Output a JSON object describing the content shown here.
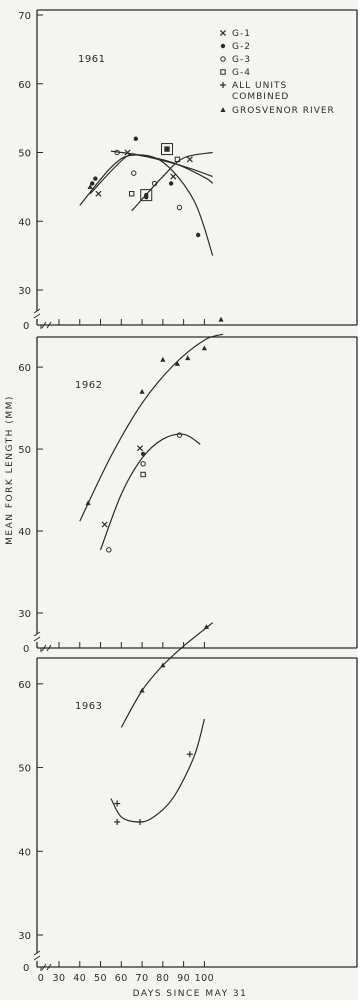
{
  "chart_data": [
    {
      "type": "scatter",
      "title": "1961",
      "xlim": [
        0,
        110
      ],
      "ylim": [
        30,
        70
      ],
      "y_ticks": [
        30,
        40,
        50,
        60,
        70
      ],
      "y_tick_labels": [
        "30",
        "40",
        "50",
        "60",
        "70"
      ],
      "ylabel": "",
      "legend_placement": "top-right",
      "legend": [
        {
          "marker": "x",
          "label": "G-1"
        },
        {
          "marker": "dot",
          "label": "G-2"
        },
        {
          "marker": "circle",
          "label": "G-3"
        },
        {
          "marker": "square",
          "label": "G-4"
        },
        {
          "marker": "plus",
          "label": "ALL UNITS"
        },
        {
          "marker": "none",
          "label": "COMBINED"
        },
        {
          "marker": "triangle",
          "label": "GROSVENOR RIVER"
        }
      ],
      "series": [
        {
          "marker": "x",
          "x": [
            49,
            63,
            85,
            93
          ],
          "y": [
            44,
            50,
            46.5,
            49
          ]
        },
        {
          "marker": "dot",
          "x": [
            46,
            47.5,
            67,
            72,
            84,
            97
          ],
          "y": [
            45.5,
            46.2,
            52,
            43.5,
            45.5,
            38
          ]
        },
        {
          "marker": "circle",
          "x": [
            58,
            66,
            76,
            88
          ],
          "y": [
            50,
            47,
            45.5,
            42
          ]
        },
        {
          "marker": "square",
          "x": [
            65,
            82,
            87
          ],
          "y": [
            44,
            50.5,
            49
          ]
        },
        {
          "marker": "triangle",
          "x": [
            45
          ],
          "y": [
            45
          ]
        }
      ],
      "boxed_points": [
        {
          "x": 72,
          "y": 43.8
        },
        {
          "x": 82,
          "y": 50.5
        }
      ],
      "curves": [
        {
          "x": [
            40,
            55,
            65,
            80,
            95,
            104
          ],
          "y": [
            42.3,
            47.8,
            49.6,
            48.6,
            43,
            35
          ]
        },
        {
          "x": [
            45,
            62,
            70,
            85,
            100,
            104
          ],
          "y": [
            44,
            49.3,
            49.5,
            48.5,
            46.4,
            45.5
          ]
        },
        {
          "x": [
            55,
            65,
            75,
            90,
            104
          ],
          "y": [
            50.2,
            49.8,
            49.2,
            48,
            46.5
          ]
        },
        {
          "x": [
            65,
            80,
            90,
            104
          ],
          "y": [
            41.5,
            46.5,
            49.2,
            50
          ]
        }
      ]
    },
    {
      "type": "scatter",
      "title": "1962",
      "xlim": [
        0,
        110
      ],
      "ylim": [
        30,
        70
      ],
      "y_ticks": [
        30,
        40,
        50,
        60
      ],
      "y_tick_labels": [
        "30",
        "40",
        "50",
        "60"
      ],
      "ylabel": "MEAN FORK LENGTH (MM)",
      "series": [
        {
          "marker": "triangle",
          "x": [
            44,
            70,
            80,
            87,
            92,
            100,
            108
          ],
          "y": [
            43.4,
            57,
            60.9,
            60.4,
            61.1,
            62.3,
            65.8
          ]
        },
        {
          "marker": "x",
          "x": [
            52,
            69
          ],
          "y": [
            40.8,
            50.1
          ]
        },
        {
          "marker": "dot",
          "x": [
            70.5
          ],
          "y": [
            49.4
          ]
        },
        {
          "marker": "circle",
          "x": [
            54,
            70.5,
            88
          ],
          "y": [
            37.7,
            48.2,
            51.7
          ]
        },
        {
          "marker": "square",
          "x": [
            70.5
          ],
          "y": [
            46.9
          ]
        }
      ],
      "curves": [
        {
          "x": [
            40,
            55,
            70,
            85,
            100,
            109
          ],
          "y": [
            41.2,
            49.1,
            55.6,
            60.2,
            63.3,
            64
          ]
        },
        {
          "x": [
            50,
            60,
            70,
            80,
            90,
            98
          ],
          "y": [
            37.7,
            44.5,
            48.9,
            51.2,
            51.8,
            50.6
          ]
        }
      ]
    },
    {
      "type": "scatter",
      "title": "1963",
      "xlim": [
        0,
        110
      ],
      "ylim": [
        30,
        70
      ],
      "x_ticks": [
        0,
        30,
        40,
        50,
        60,
        70,
        80,
        90,
        100
      ],
      "x_tick_labels": [
        "0",
        "30",
        "40",
        "50",
        "60",
        "70",
        "80",
        "90",
        "100"
      ],
      "y_ticks": [
        30,
        40,
        50,
        60
      ],
      "y_tick_labels": [
        "30",
        "40",
        "50",
        "60"
      ],
      "xlabel": "DAYS SINCE MAY 31",
      "ylabel": "",
      "series": [
        {
          "marker": "triangle",
          "x": [
            70,
            80,
            101
          ],
          "y": [
            59.2,
            62.2,
            66.8
          ]
        },
        {
          "marker": "plus",
          "x": [
            58,
            58,
            69,
            93
          ],
          "y": [
            45.7,
            43.5,
            43.5,
            51.6
          ]
        }
      ],
      "curves": [
        {
          "x": [
            60,
            70,
            80,
            90,
            104
          ],
          "y": [
            54.8,
            59.2,
            62.2,
            64.5,
            67.3
          ]
        },
        {
          "x": [
            55,
            60,
            68,
            75,
            85,
            95,
            100
          ],
          "y": [
            46.3,
            44.1,
            43.5,
            44,
            46.4,
            51.3,
            55.8
          ]
        }
      ]
    }
  ]
}
